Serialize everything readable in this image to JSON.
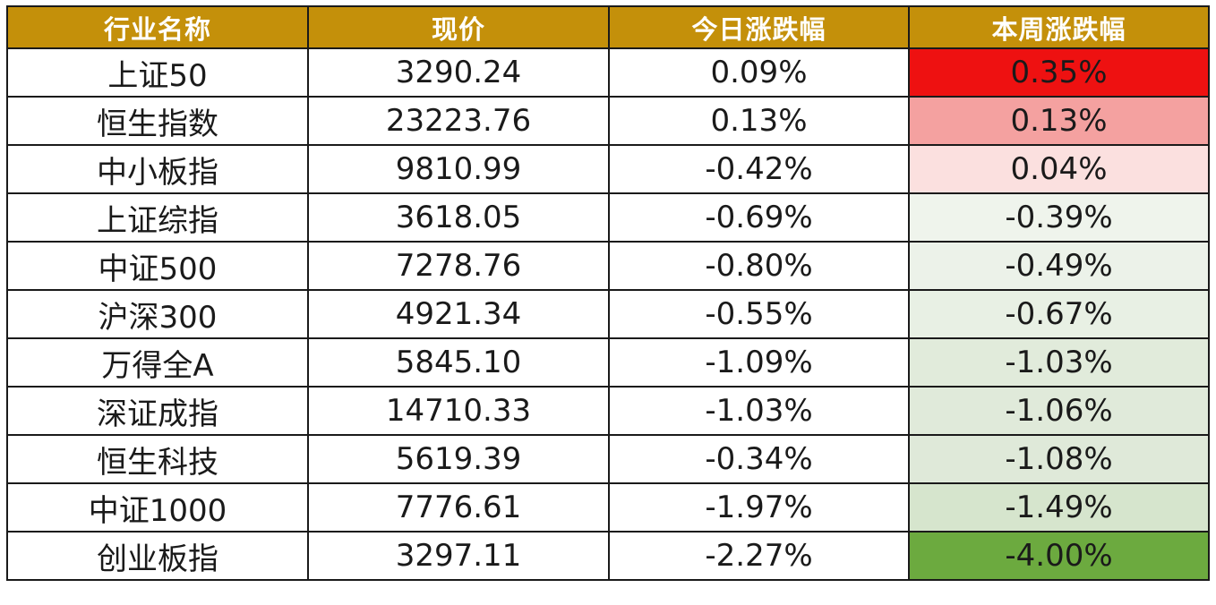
{
  "table": {
    "headers": [
      "行业名称",
      "现价",
      "今日涨跌幅",
      "本周涨跌幅"
    ],
    "rows": [
      {
        "name": "上证50",
        "price": "3290.24",
        "today": "0.09%",
        "week": "0.35%",
        "week_color": "#ee1111"
      },
      {
        "name": "恒生指数",
        "price": "23223.76",
        "today": "0.13%",
        "week": "0.13%",
        "week_color": "#f4a1a0"
      },
      {
        "name": "中小板指",
        "price": "9810.99",
        "today": "-0.42%",
        "week": "0.04%",
        "week_color": "#fbe0df"
      },
      {
        "name": "上证综指",
        "price": "3618.05",
        "today": "-0.69%",
        "week": "-0.39%",
        "week_color": "#eff4ec"
      },
      {
        "name": "中证500",
        "price": "7278.76",
        "today": "-0.80%",
        "week": "-0.49%",
        "week_color": "#ecf2e9"
      },
      {
        "name": "沪深300",
        "price": "4921.34",
        "today": "-0.55%",
        "week": "-0.67%",
        "week_color": "#e8f0e4"
      },
      {
        "name": "万得全A",
        "price": "5845.10",
        "today": "-1.09%",
        "week": "-1.03%",
        "week_color": "#e1ebdb"
      },
      {
        "name": "深证成指",
        "price": "14710.33",
        "today": "-1.03%",
        "week": "-1.06%",
        "week_color": "#e0eada"
      },
      {
        "name": "恒生科技",
        "price": "5619.39",
        "today": "-0.34%",
        "week": "-1.08%",
        "week_color": "#dfe9d9"
      },
      {
        "name": "中证1000",
        "price": "7776.61",
        "today": "-1.97%",
        "week": "-1.49%",
        "week_color": "#d6e5cd"
      },
      {
        "name": "创业板指",
        "price": "3297.11",
        "today": "-2.27%",
        "week": "-4.00%",
        "week_color": "#6caa3f"
      }
    ]
  },
  "colors": {
    "header_bg": "#c4900a",
    "header_text": "#ffffff",
    "border": "#1a1a1a"
  }
}
